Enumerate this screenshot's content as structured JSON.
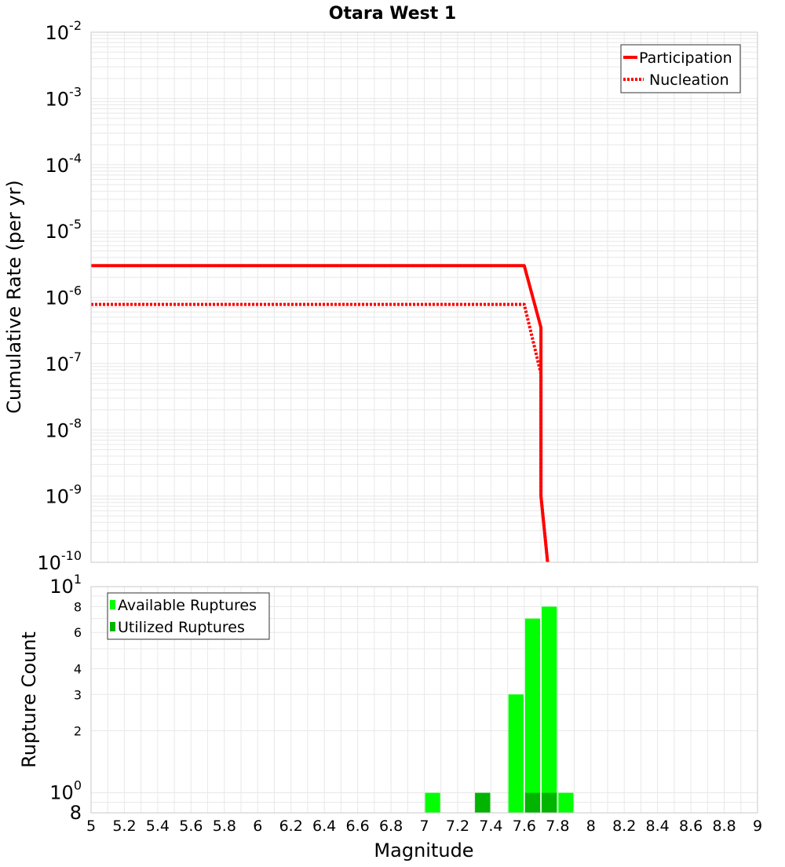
{
  "title": "Otara West 1",
  "colors": {
    "participation": "#ff0000",
    "nucleation": "#ff0000",
    "available": "#00ff00",
    "utilized": "#00b400",
    "grid": "#e8e8e8",
    "frame": "#c8c8c8"
  },
  "chart_data": [
    {
      "type": "line",
      "title": "Otara West 1",
      "xlabel": "",
      "ylabel": "Cumulative Rate (per yr)",
      "yscale": "log",
      "xlim": [
        5,
        9
      ],
      "ylim": [
        1e-10,
        0.01
      ],
      "ytick_exponents": [
        -10,
        -9,
        -8,
        -7,
        -6,
        -5,
        -4,
        -3,
        -2
      ],
      "grid": true,
      "legend_position": "top-right",
      "series": [
        {
          "name": "Participation",
          "style": "solid",
          "x": [
            5.0,
            7.6,
            7.7,
            7.7,
            7.74
          ],
          "y": [
            3e-06,
            3e-06,
            3.5e-07,
            1e-09,
            1e-10
          ]
        },
        {
          "name": "Nucleation",
          "style": "dotted",
          "x": [
            5.0,
            7.6,
            7.7,
            7.7,
            7.74
          ],
          "y": [
            7.8e-07,
            7.8e-07,
            7e-08,
            1e-09,
            1e-10
          ]
        }
      ]
    },
    {
      "type": "bar",
      "title": "",
      "xlabel": "Magnitude",
      "ylabel": "Rupture Count",
      "yscale": "log",
      "xlim": [
        5,
        9
      ],
      "ylim": [
        0.8,
        10
      ],
      "bar_width": 0.1,
      "grid": true,
      "legend_position": "top-left",
      "x_ticks": [
        "5",
        "5.2",
        "5.4",
        "5.6",
        "5.8",
        "6",
        "6.2",
        "6.4",
        "6.6",
        "6.8",
        "7",
        "7.2",
        "7.4",
        "7.6",
        "7.8",
        "8",
        "8.2",
        "8.4",
        "8.6",
        "8.8",
        "9"
      ],
      "y_ticks": [
        {
          "value": 0.8,
          "label": "8",
          "exp": "",
          "size": "large"
        },
        {
          "value": 1,
          "label": "10",
          "exp": "0",
          "size": "large"
        },
        {
          "value": 2,
          "label": "2",
          "exp": "",
          "size": "small"
        },
        {
          "value": 3,
          "label": "3",
          "exp": "",
          "size": "small"
        },
        {
          "value": 4,
          "label": "4",
          "exp": "",
          "size": "small"
        },
        {
          "value": 6,
          "label": "6",
          "exp": "",
          "size": "small"
        },
        {
          "value": 8,
          "label": "8",
          "exp": "",
          "size": "small"
        },
        {
          "value": 10,
          "label": "10",
          "exp": "1",
          "size": "large"
        }
      ],
      "series": [
        {
          "name": "Available Ruptures",
          "x": [
            7.05,
            7.35,
            7.55,
            7.65,
            7.75,
            7.85
          ],
          "values": [
            1,
            1,
            3,
            7,
            8,
            1
          ]
        },
        {
          "name": "Utilized Ruptures",
          "x": [
            7.35,
            7.65,
            7.75
          ],
          "values": [
            1,
            1,
            1
          ]
        }
      ]
    }
  ]
}
